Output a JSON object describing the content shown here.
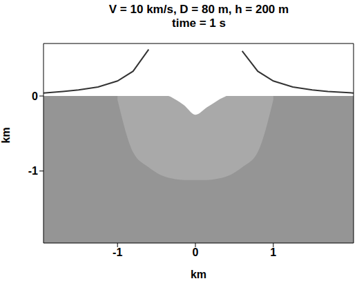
{
  "chart_data": {
    "type": "area",
    "title": "V = 10 km/s, D = 80 m, h = 200 m",
    "subtitle": "time = 1 s",
    "xlabel": "km",
    "ylabel": "km",
    "xlim": [
      -1.95,
      2.03
    ],
    "ylim": [
      -1.96,
      0.7
    ],
    "xticks": [
      -1,
      0,
      1
    ],
    "yticks": [
      -1,
      0
    ],
    "x": [
      -1.95,
      -1.7,
      -1.5,
      -1.25,
      -1,
      -0.8,
      -0.6,
      -0.45,
      -0.3,
      -0.15,
      0,
      0.15,
      0.3,
      0.45,
      0.6,
      0.8,
      1,
      1.25,
      1.5,
      1.7,
      2.03
    ],
    "series": [
      {
        "type": "area",
        "color": "#959595",
        "values": [
          [
            -1.96,
            0
          ],
          [
            -1.96,
            0
          ],
          [
            -1.96,
            0
          ],
          [
            -1.96,
            0
          ],
          [
            -1.96,
            0
          ],
          [
            -1.96,
            0
          ],
          [
            -1.96,
            0
          ],
          [
            -1.96,
            0
          ],
          [
            -1.96,
            0
          ],
          [
            -1.96,
            0
          ],
          [
            -1.96,
            0
          ],
          [
            -1.96,
            0
          ],
          [
            -1.96,
            0
          ],
          [
            -1.96,
            0
          ],
          [
            -1.96,
            0
          ],
          [
            -1.96,
            0
          ],
          [
            -1.96,
            0
          ],
          [
            -1.96,
            0
          ],
          [
            -1.96,
            0
          ],
          [
            -1.96,
            0
          ],
          [
            -1.96,
            0
          ]
        ]
      },
      {
        "type": "area",
        "color": "#a9a9a9",
        "values": [
          null,
          null,
          null,
          null,
          [
            -0.05,
            0
          ],
          [
            -0.75,
            0
          ],
          [
            -0.95,
            0
          ],
          [
            -1.05,
            0
          ],
          [
            -1.1,
            0
          ],
          [
            -1.12,
            0
          ],
          [
            -1.12,
            0
          ],
          [
            -1.12,
            0
          ],
          [
            -1.1,
            0
          ],
          [
            -1.05,
            0
          ],
          [
            -0.95,
            0
          ],
          [
            -0.75,
            0
          ],
          [
            -0.05,
            0
          ],
          null,
          null,
          null,
          null
        ]
      },
      {
        "type": "area",
        "color": "#ffffff",
        "values": [
          null,
          null,
          null,
          null,
          null,
          null,
          [
            0.55,
            0.7
          ],
          [
            0.05,
            0.7
          ],
          [
            -0.02,
            0.7
          ],
          [
            -0.12,
            0.7
          ],
          [
            -0.25,
            0.7
          ],
          [
            -0.15,
            0.7
          ],
          [
            -0.05,
            0.7
          ],
          [
            0.05,
            0.7
          ],
          [
            0.5,
            0.7
          ],
          null,
          null,
          null,
          null,
          null,
          null
        ]
      },
      {
        "type": "line",
        "color": "#333333",
        "values": [
          0.04,
          0.06,
          0.08,
          0.12,
          0.2,
          0.33,
          0.62,
          null,
          null,
          null,
          null,
          null,
          null,
          null,
          null,
          null,
          null,
          null,
          null,
          null,
          null
        ]
      },
      {
        "type": "line",
        "color": "#333333",
        "values": [
          null,
          null,
          null,
          null,
          null,
          null,
          null,
          null,
          null,
          null,
          null,
          null,
          null,
          null,
          0.6,
          0.33,
          0.2,
          0.12,
          0.08,
          0.06,
          0.04
        ]
      }
    ]
  }
}
